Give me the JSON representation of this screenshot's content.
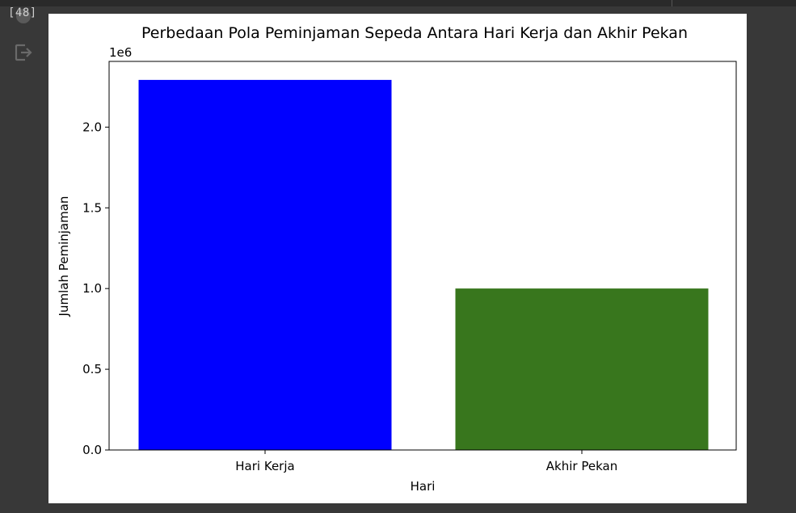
{
  "cell": {
    "execution_count": "[48]",
    "output_icon": "exit-output-icon"
  },
  "chart_data": {
    "type": "bar",
    "title": "Perbedaan Pola Peminjaman Sepeda Antara Hari Kerja dan Akhir Pekan",
    "xlabel": "Hari",
    "ylabel": "Jumlah Peminjaman",
    "offset_label": "1e6",
    "categories": [
      "Hari Kerja",
      "Akhir Pekan"
    ],
    "values": [
      2292410,
      1000269
    ],
    "colors": [
      "#0000ff",
      "#38761d"
    ],
    "ylim": [
      0,
      2407030
    ],
    "yticks": [
      0,
      500000,
      1000000,
      1500000,
      2000000
    ],
    "ytick_labels": [
      "0.0",
      "0.5",
      "1.0",
      "1.5",
      "2.0"
    ],
    "grid": false,
    "legend": "none"
  }
}
